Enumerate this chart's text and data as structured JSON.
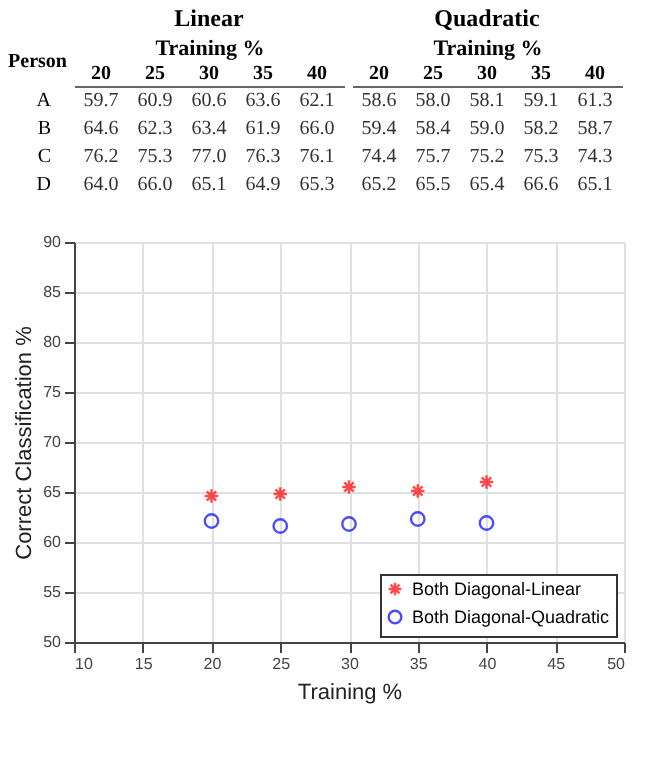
{
  "chart_data": [
    {
      "type": "heatmap",
      "title": "Linear",
      "xlabel": "Training %",
      "ylabel": "Person",
      "categories": [
        "20",
        "25",
        "30",
        "35",
        "40"
      ],
      "y_categories": [
        "A",
        "B",
        "C",
        "D"
      ],
      "data_labels": true,
      "cell_labels": [
        [
          "59.7",
          "60.9",
          "60.6",
          "63.6",
          "62.1"
        ],
        [
          "64.6",
          "62.3",
          "63.4",
          "61.9",
          "66.0"
        ],
        [
          "76.2",
          "75.3",
          "77.0",
          "76.3",
          "76.1"
        ],
        [
          "64.0",
          "66.0",
          "65.1",
          "64.9",
          "65.3"
        ]
      ],
      "cells": [
        [
          59.7,
          60.9,
          60.6,
          63.6,
          62.1
        ],
        [
          64.6,
          62.3,
          63.4,
          61.9,
          66.0
        ],
        [
          76.2,
          75.3,
          77.0,
          76.3,
          76.1
        ],
        [
          64.0,
          66.0,
          65.1,
          64.9,
          65.3
        ]
      ]
    },
    {
      "type": "heatmap",
      "title": "Quadratic",
      "xlabel": "Training %",
      "categories": [
        "20",
        "25",
        "30",
        "35",
        "40"
      ],
      "y_categories": [
        null,
        null,
        null,
        null
      ],
      "data_labels": true,
      "cell_labels": [
        [
          "58.6",
          "58.0",
          "58.1",
          "59.1",
          "61.3"
        ],
        [
          "59.4",
          "58.4",
          "59.0",
          "58.2",
          "58.7"
        ],
        [
          "74.4",
          "75.7",
          "75.2",
          "75.3",
          "74.3"
        ],
        [
          "65.2",
          "65.5",
          "65.4",
          "66.6",
          "65.1"
        ]
      ],
      "cells": [
        [
          58.6,
          58.0,
          58.1,
          59.1,
          61.3
        ],
        [
          59.4,
          58.4,
          59.0,
          58.2,
          58.7
        ],
        [
          74.4,
          75.7,
          75.2,
          75.3,
          74.3
        ],
        [
          65.2,
          65.5,
          65.4,
          66.6,
          65.1
        ]
      ]
    },
    {
      "type": "scatter",
      "xlabel": "Training %",
      "ylabel": "Correct Classification %",
      "x": [
        20,
        25,
        30,
        35,
        40
      ],
      "xlim": [
        10,
        50
      ],
      "xticks": [
        10,
        15,
        20,
        25,
        30,
        35,
        40,
        45,
        50
      ],
      "ylim": [
        50,
        90
      ],
      "yticks": [
        50,
        55,
        60,
        65,
        70,
        75,
        80,
        85,
        90
      ],
      "grid": true,
      "legend": "bottom right",
      "series": [
        {
          "name": "Both Diagonal-Linear",
          "color": "#ff0000",
          "marker": "cross",
          "values": [
            64.6,
            64.8,
            65.5,
            65.1,
            66.0
          ]
        },
        {
          "name": "Both Diagonal-Quadratic",
          "color": "#0000ff",
          "marker": "circle",
          "values": [
            62.1,
            61.6,
            61.8,
            62.3,
            61.9
          ]
        }
      ]
    }
  ]
}
